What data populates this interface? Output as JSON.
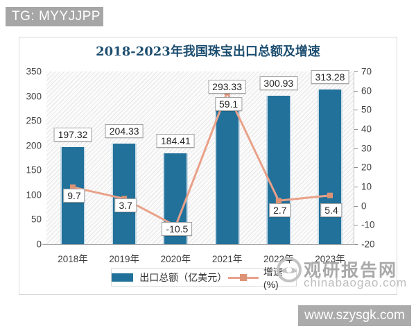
{
  "badge": {
    "text": "TG: MYYJJPP"
  },
  "watermarks": {
    "site_name": "观研报告网",
    "site_domain": "chinabaogao.com",
    "bottom_bar": "www.szysgk.com"
  },
  "chart_data": {
    "type": "bar+line combo",
    "title": "2018-2023年我国珠宝出口总额及增速",
    "categories": [
      "2018年",
      "2019年",
      "2020年",
      "2021年",
      "2022年",
      "2023年"
    ],
    "series": [
      {
        "name": "出口总额（亿美元）",
        "type": "bar",
        "axis": "left",
        "values": [
          197.32,
          204.33,
          184.41,
          293.33,
          300.93,
          313.28
        ],
        "color": "#21719b"
      },
      {
        "name": "增速(%)",
        "type": "line",
        "axis": "right",
        "values": [
          9.7,
          3.7,
          -10.5,
          59.1,
          2.7,
          5.4
        ],
        "color": "#e9a189",
        "marker_color": "#dd9376"
      }
    ],
    "left_axis": {
      "min": 0,
      "max": 350,
      "step": 50,
      "ticks": [
        0,
        50,
        100,
        150,
        200,
        250,
        300,
        350
      ]
    },
    "right_axis": {
      "min": -20,
      "max": 70,
      "step": 10,
      "ticks": [
        -20,
        -10,
        0,
        10,
        20,
        30,
        40,
        50,
        60,
        70
      ]
    },
    "grid": false,
    "legend_position": "bottom",
    "plot_background": "diagonal-hatch"
  }
}
